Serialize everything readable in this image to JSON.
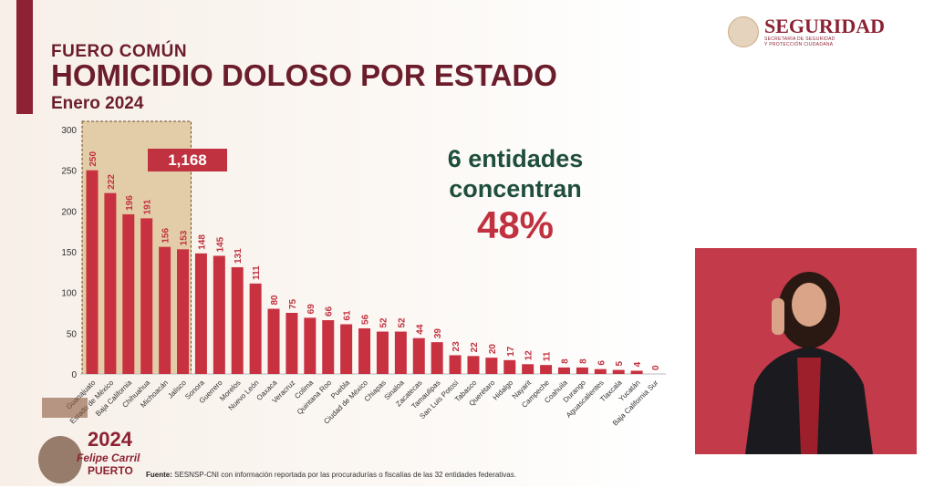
{
  "header": {
    "kicker": "FUERO COMÚN",
    "title": "HOMICIDIO DOLOSO POR ESTADO",
    "period": "Enero 2024"
  },
  "logo": {
    "name": "SEGURIDAD",
    "subtitle_1": "SECRETARÍA DE SEGURIDAD",
    "subtitle_2": "Y PROTECCIÓN CIUDADANA"
  },
  "callout": {
    "line1": "6 entidades",
    "line2": "concentran",
    "percent": "48%"
  },
  "highlight_total": "1,168",
  "footer": {
    "label": "Fuente:",
    "text": " SESNSP-CNI con información reportada por las procuradurías o fiscalías de las 32 entidades federativas."
  },
  "badge": {
    "year": "2024",
    "name": "Felipe Carrillo",
    "surname": "PUERTO"
  },
  "colors": {
    "bar": "#c8313f",
    "highlight": "#e3cda8",
    "title": "#6b1d2b",
    "accent_green": "#1f4e3d",
    "accent_red": "#c0323f"
  },
  "chart_data": {
    "type": "bar",
    "title": "HOMICIDIO DOLOSO POR ESTADO",
    "categories": [
      "Guanajuato",
      "Estado de México",
      "Baja California",
      "Chihuahua",
      "Michoacán",
      "Jalisco",
      "Sonora",
      "Guerrero",
      "Morelos",
      "Nuevo León",
      "Oaxaca",
      "Veracruz",
      "Colima",
      "Quintana Roo",
      "Puebla",
      "Ciudad de México",
      "Chiapas",
      "Sinaloa",
      "Zacatecas",
      "Tamaulipas",
      "San Luis Potosí",
      "Tabasco",
      "Querétaro",
      "Hidalgo",
      "Nayarit",
      "Campeche",
      "Coahuila",
      "Durango",
      "Aguascalientes",
      "Tlaxcala",
      "Yucatán",
      "Baja California Sur"
    ],
    "values": [
      250,
      222,
      196,
      191,
      156,
      153,
      148,
      145,
      131,
      111,
      80,
      75,
      69,
      66,
      61,
      56,
      52,
      52,
      44,
      39,
      23,
      22,
      20,
      17,
      12,
      11,
      8,
      8,
      6,
      5,
      4,
      0
    ],
    "ylim": [
      0,
      300
    ],
    "yticks": [
      0,
      50,
      100,
      150,
      200,
      250,
      300
    ],
    "highlighted_count": 6,
    "grid": false
  }
}
